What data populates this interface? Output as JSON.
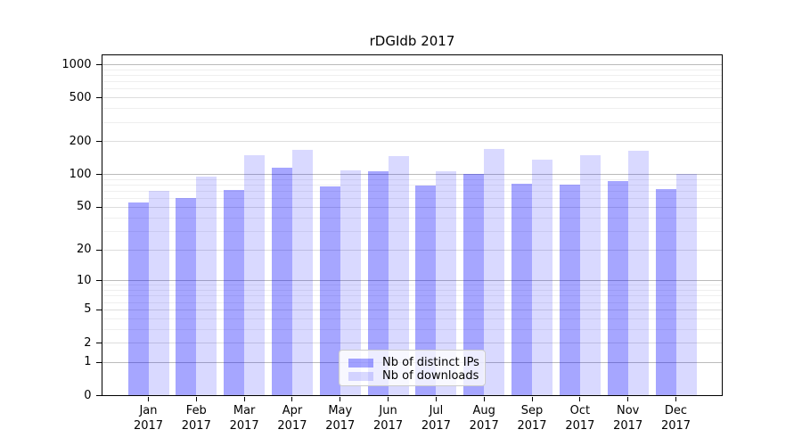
{
  "title": "rDGIdb 2017",
  "chart_data": {
    "type": "bar",
    "title": "rDGIdb 2017",
    "categories": [
      "Jan 2017",
      "Feb 2017",
      "Mar 2017",
      "Apr 2017",
      "May 2017",
      "Jun 2017",
      "Jul 2017",
      "Aug 2017",
      "Sep 2017",
      "Oct 2017",
      "Nov 2017",
      "Dec 2017"
    ],
    "series": [
      {
        "name": "Nb of distinct IPs",
        "color": "rgba(0,0,255,0.35)",
        "values": [
          55,
          61,
          72,
          116,
          78,
          108,
          79,
          102,
          82,
          81,
          88,
          73
        ]
      },
      {
        "name": "Nb of downloads",
        "color": "rgba(0,0,255,0.15)",
        "values": [
          71,
          95,
          150,
          169,
          109,
          147,
          107,
          172,
          136,
          150,
          166,
          101
        ]
      }
    ],
    "xlabel": "",
    "ylabel": "",
    "yscale": "log1p",
    "yticks": [
      0,
      1,
      2,
      5,
      10,
      20,
      50,
      100,
      200,
      500,
      1000
    ],
    "minor_ytick_multipliers": [
      3,
      4,
      6,
      7,
      8,
      9
    ],
    "minor_ytick_decades": [
      1,
      10,
      100
    ],
    "ylim": [
      0,
      1230
    ],
    "grid": true,
    "legend_position": "bottom-center",
    "colors": {
      "grid_power10": "#bbbbbb",
      "grid_major": "#dddddd",
      "grid_minor": "#efefef",
      "axis": "#000000",
      "background": "#ffffff"
    }
  }
}
